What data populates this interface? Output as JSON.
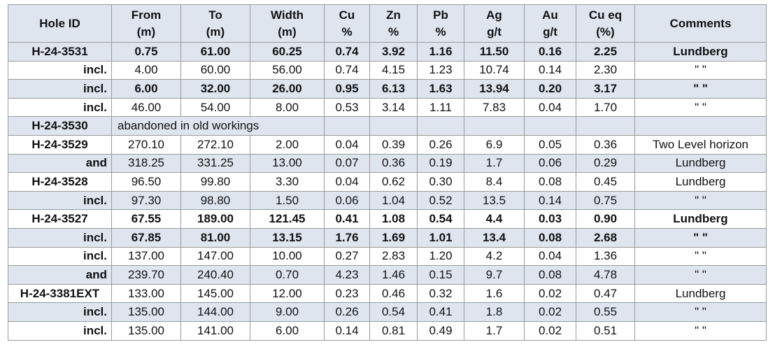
{
  "headers": [
    {
      "line1": "Hole ID",
      "line2": ""
    },
    {
      "line1": "From",
      "line2": "(m)"
    },
    {
      "line1": "To",
      "line2": "(m)"
    },
    {
      "line1": "Width",
      "line2": "(m)"
    },
    {
      "line1": "Cu",
      "line2": "%"
    },
    {
      "line1": "Zn",
      "line2": "%"
    },
    {
      "line1": "Pb",
      "line2": "%"
    },
    {
      "line1": "Ag",
      "line2": "g/t"
    },
    {
      "line1": "Au",
      "line2": "g/t"
    },
    {
      "line1": "Cu eq",
      "line2": "(%)"
    },
    {
      "line1": "Comments",
      "line2": ""
    }
  ],
  "rows": [
    {
      "hole": "H-24-3531",
      "from": "0.75",
      "to": "61.00",
      "width": "60.25",
      "cu": "0.74",
      "zn": "3.92",
      "pb": "1.16",
      "ag": "11.50",
      "au": "0.16",
      "cueq": "2.25",
      "comment": "Lundberg"
    },
    {
      "hole": "incl.",
      "from": "4.00",
      "to": "60.00",
      "width": "56.00",
      "cu": "0.74",
      "zn": "4.15",
      "pb": "1.23",
      "ag": "10.74",
      "au": "0.14",
      "cueq": "2.30",
      "comment": "\" \""
    },
    {
      "hole": "incl.",
      "from": "6.00",
      "to": "32.00",
      "width": "26.00",
      "cu": "0.95",
      "zn": "6.13",
      "pb": "1.63",
      "ag": "13.94",
      "au": "0.20",
      "cueq": "3.17",
      "comment": "\" \""
    },
    {
      "hole": "incl.",
      "from": "46.00",
      "to": "54.00",
      "width": "8.00",
      "cu": "0.53",
      "zn": "3.14",
      "pb": "1.11",
      "ag": "7.83",
      "au": "0.04",
      "cueq": "1.70",
      "comment": "\" \""
    },
    {
      "hole": "H-24-3530",
      "note": "abandoned in old workings"
    },
    {
      "hole": "H-24-3529",
      "from": "270.10",
      "to": "272.10",
      "width": "2.00",
      "cu": "0.04",
      "zn": "0.39",
      "pb": "0.26",
      "ag": "6.9",
      "au": "0.05",
      "cueq": "0.36",
      "comment": "Two Level horizon"
    },
    {
      "hole": "and",
      "from": "318.25",
      "to": "331.25",
      "width": "13.00",
      "cu": "0.07",
      "zn": "0.36",
      "pb": "0.19",
      "ag": "1.7",
      "au": "0.06",
      "cueq": "0.29",
      "comment": "Lundberg"
    },
    {
      "hole": "H-24-3528",
      "from": "96.50",
      "to": "99.80",
      "width": "3.30",
      "cu": "0.04",
      "zn": "0.62",
      "pb": "0.30",
      "ag": "8.4",
      "au": "0.08",
      "cueq": "0.45",
      "comment": "Lundberg"
    },
    {
      "hole": "incl.",
      "from": "97.30",
      "to": "98.80",
      "width": "1.50",
      "cu": "0.06",
      "zn": "1.04",
      "pb": "0.52",
      "ag": "13.5",
      "au": "0.14",
      "cueq": "0.75",
      "comment": "\" \""
    },
    {
      "hole": "H-24-3527",
      "from": "67.55",
      "to": "189.00",
      "width": "121.45",
      "cu": "0.41",
      "zn": "1.08",
      "pb": "0.54",
      "ag": "4.4",
      "au": "0.03",
      "cueq": "0.90",
      "comment": "Lundberg"
    },
    {
      "hole": "incl.",
      "from": "67.85",
      "to": "81.00",
      "width": "13.15",
      "cu": "1.76",
      "zn": "1.69",
      "pb": "1.01",
      "ag": "13.4",
      "au": "0.08",
      "cueq": "2.68",
      "comment": "\" \""
    },
    {
      "hole": "incl.",
      "from": "137.00",
      "to": "147.00",
      "width": "10.00",
      "cu": "0.27",
      "zn": "2.83",
      "pb": "1.20",
      "ag": "4.2",
      "au": "0.04",
      "cueq": "1.36",
      "comment": "\" \""
    },
    {
      "hole": "and",
      "from": "239.70",
      "to": "240.40",
      "width": "0.70",
      "cu": "4.23",
      "zn": "1.46",
      "pb": "0.15",
      "ag": "9.7",
      "au": "0.08",
      "cueq": "4.78",
      "comment": "\" \""
    },
    {
      "hole": "H-24-3381EXT",
      "from": "133.00",
      "to": "145.00",
      "width": "12.00",
      "cu": "0.23",
      "zn": "0.46",
      "pb": "0.32",
      "ag": "1.6",
      "au": "0.02",
      "cueq": "0.47",
      "comment": "Lundberg"
    },
    {
      "hole": "incl.",
      "from": "135.00",
      "to": "144.00",
      "width": "9.00",
      "cu": "0.26",
      "zn": "0.54",
      "pb": "0.41",
      "ag": "1.8",
      "au": "0.02",
      "cueq": "0.55",
      "comment": "\" \""
    },
    {
      "hole": "incl.",
      "from": "135.00",
      "to": "141.00",
      "width": "6.00",
      "cu": "0.14",
      "zn": "0.81",
      "pb": "0.49",
      "ag": "1.7",
      "au": "0.02",
      "cueq": "0.51",
      "comment": "\" \""
    }
  ]
}
